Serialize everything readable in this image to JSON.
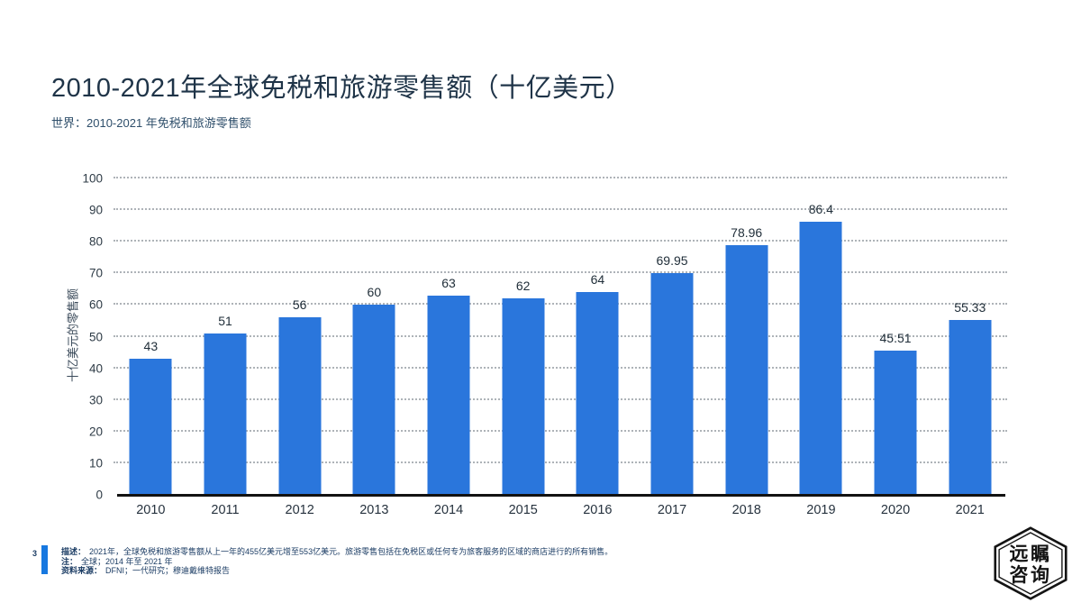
{
  "page": {
    "title": "2010-2021年全球免税和旅游零售额（十亿美元）",
    "subtitle": "世界：2010-2021 年免税和旅游零售额",
    "page_number": "3"
  },
  "chart_data": {
    "type": "bar",
    "categories": [
      "2010",
      "2011",
      "2012",
      "2013",
      "2014",
      "2015",
      "2016",
      "2017",
      "2018",
      "2019",
      "2020",
      "2021"
    ],
    "values": [
      43,
      51,
      56,
      60,
      63,
      62,
      64,
      69.95,
      78.96,
      86.4,
      45.51,
      55.33
    ],
    "title": "2010-2021年全球免税和旅游零售额（十亿美元）",
    "xlabel": "",
    "ylabel": "十亿美元的零售额",
    "ylim": [
      0,
      100
    ],
    "ytick_step": 10,
    "grid": "horizontal-dotted",
    "legend": "none",
    "bar_color": "#2a76dc"
  },
  "footer": {
    "description_label": "描述：",
    "description": "2021年，全球免税和旅游零售额从上一年的455亿美元增至553亿美元。旅游零售包括在免税区或任何专为旅客服务的区域的商店进行的所有销售。",
    "note_label": "注：",
    "note": "全球；2014 年至 2021 年",
    "source_label": "资料来源：",
    "source": "DFNI；一代研究；穆迪戴维特报告"
  },
  "logo": {
    "line1": "远瞩",
    "line2": "咨询"
  },
  "colors": {
    "bar": "#2a76dc",
    "accent": "#1778e0",
    "title_ink": "#1f3448",
    "footer_ink": "#1b3c64"
  }
}
